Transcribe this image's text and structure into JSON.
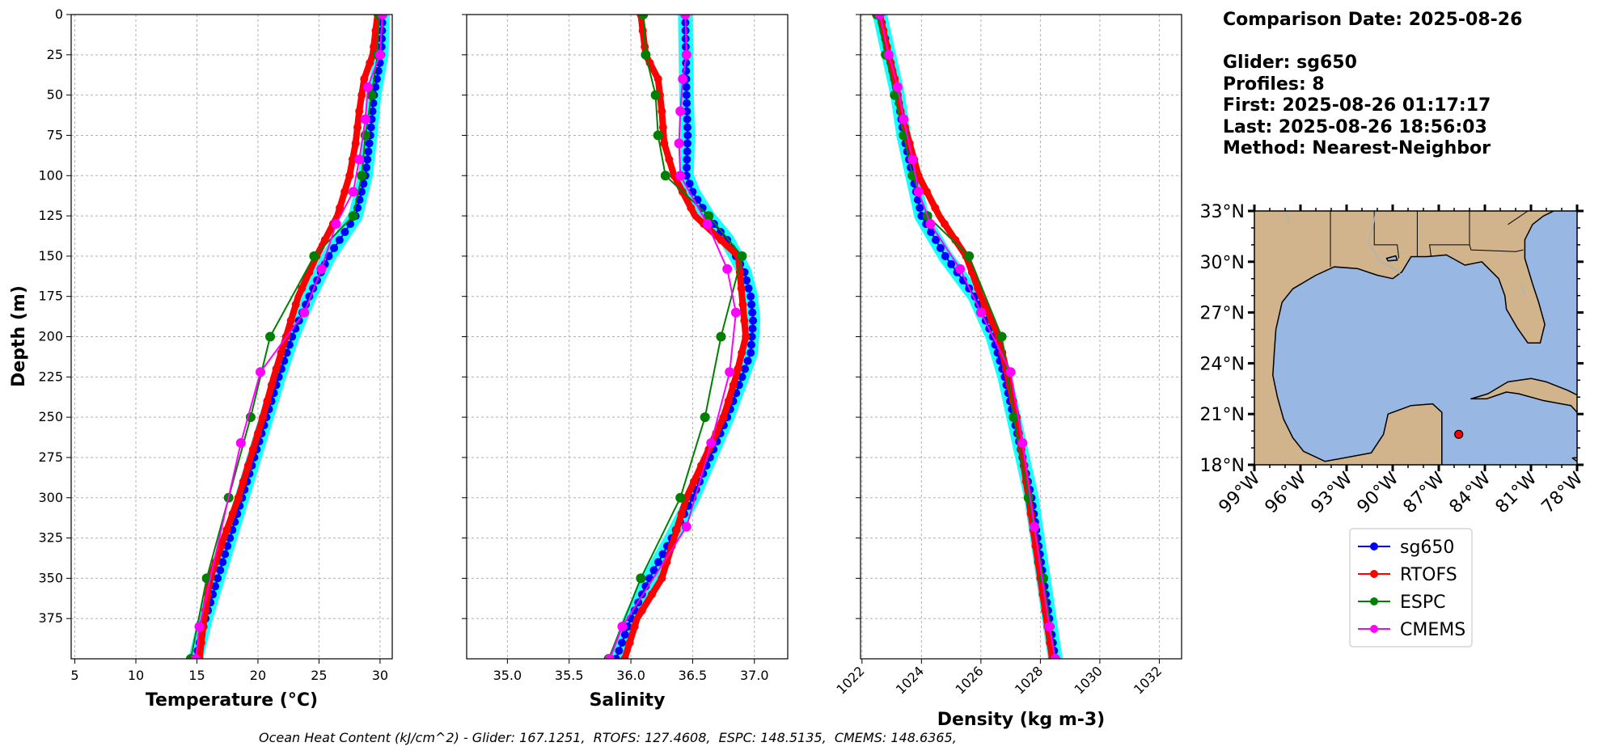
{
  "info": {
    "comparison": "Comparison Date: 2025-08-26",
    "glider": "Glider: sg650",
    "profiles": "Profiles: 8",
    "first": "First: 2025-08-26 01:17:17",
    "last": "Last: 2025-08-26 18:56:03",
    "method": "Method: Nearest-Neighbor"
  },
  "footer": "Ocean Heat Content (kJ/cm^2) - Glider: 167.1251,  RTOFS: 127.4608,  ESPC: 148.5135,  CMEMS: 148.6365,",
  "colors": {
    "sg650": "#0000ff",
    "sg650_spread": "#00ffff",
    "RTOFS": "#ff0000",
    "ESPC": "#008000",
    "CMEMS": "#ff00ff",
    "land": "#d2b48c",
    "ocean": "#98b7e2"
  },
  "chart_data": [
    {
      "type": "line",
      "xlabel": "Temperature (°C)",
      "ylabel": "Depth (m)",
      "xlim": [
        4.7,
        31
      ],
      "ylim": [
        400,
        0
      ],
      "xticks": [
        5,
        10,
        15,
        20,
        25,
        30
      ],
      "yticks": [
        0,
        25,
        50,
        75,
        100,
        125,
        150,
        175,
        200,
        225,
        250,
        275,
        300,
        325,
        350,
        375
      ],
      "grid": true,
      "series": [
        {
          "name": "sg650",
          "depth": [
            0,
            25,
            50,
            75,
            100,
            125,
            150,
            175,
            200,
            225,
            250,
            275,
            300,
            325,
            350,
            375,
            400
          ],
          "values": [
            30.2,
            30.1,
            29.5,
            29.2,
            28.8,
            28.0,
            25.8,
            24.2,
            22.8,
            21.7,
            20.7,
            19.7,
            18.7,
            17.7,
            16.7,
            15.7,
            14.9
          ]
        },
        {
          "name": "RTOFS",
          "depth": [
            0,
            25,
            40,
            60,
            80,
            100,
            125,
            150,
            175,
            200,
            225,
            250,
            275,
            300,
            325,
            350,
            375,
            400
          ],
          "values": [
            29.8,
            29.4,
            28.7,
            28.3,
            28.0,
            27.5,
            26.5,
            24.8,
            23.3,
            22.3,
            21.3,
            20.4,
            19.4,
            18.4,
            17.2,
            16.1,
            15.6,
            15.2
          ]
        },
        {
          "name": "ESPC",
          "depth": [
            0,
            25,
            50,
            75,
            100,
            125,
            150,
            200,
            250,
            300,
            350,
            400
          ],
          "values": [
            29.9,
            29.8,
            29.3,
            28.8,
            28.5,
            27.8,
            24.6,
            21.0,
            19.4,
            17.6,
            15.8,
            14.5
          ]
        },
        {
          "name": "CMEMS",
          "depth": [
            0,
            25,
            45,
            65,
            90,
            110,
            130,
            158,
            185,
            222,
            266,
            380,
            400
          ],
          "values": [
            30.2,
            30.0,
            29.0,
            28.8,
            28.3,
            27.8,
            26.4,
            25.2,
            23.8,
            20.2,
            18.6,
            15.2,
            14.9
          ]
        }
      ]
    },
    {
      "type": "line",
      "xlabel": "Salinity",
      "xlim": [
        34.67,
        37.27
      ],
      "ylim": [
        400,
        0
      ],
      "xticks": [
        35.0,
        35.5,
        36.0,
        36.5,
        37.0
      ],
      "grid": true,
      "series": [
        {
          "name": "sg650",
          "depth": [
            0,
            50,
            75,
            100,
            110,
            125,
            140,
            160,
            175,
            190,
            210,
            225,
            250,
            275,
            300,
            325,
            350,
            375,
            400
          ],
          "values": [
            36.44,
            36.45,
            36.46,
            36.45,
            36.5,
            36.62,
            36.78,
            36.92,
            36.97,
            36.99,
            36.97,
            36.9,
            36.78,
            36.64,
            36.5,
            36.33,
            36.15,
            36.0,
            35.88
          ]
        },
        {
          "name": "RTOFS",
          "depth": [
            0,
            25,
            40,
            60,
            80,
            100,
            125,
            150,
            200,
            225,
            250,
            275,
            300,
            325,
            350,
            375,
            400
          ],
          "values": [
            36.08,
            36.12,
            36.22,
            36.25,
            36.27,
            36.35,
            36.52,
            36.87,
            36.93,
            36.85,
            36.75,
            36.6,
            36.45,
            36.35,
            36.25,
            36.05,
            35.95
          ]
        },
        {
          "name": "ESPC",
          "depth": [
            0,
            25,
            50,
            75,
            100,
            125,
            150,
            200,
            250,
            300,
            350,
            400
          ],
          "values": [
            36.1,
            36.12,
            36.2,
            36.22,
            36.28,
            36.63,
            36.9,
            36.73,
            36.6,
            36.4,
            36.08,
            35.82
          ]
        },
        {
          "name": "CMEMS",
          "depth": [
            0,
            25,
            40,
            60,
            80,
            100,
            130,
            158,
            185,
            222,
            266,
            318,
            380,
            400
          ],
          "values": [
            36.44,
            36.45,
            36.42,
            36.4,
            36.39,
            36.4,
            36.62,
            36.78,
            36.85,
            36.8,
            36.65,
            36.45,
            35.93,
            35.83
          ]
        }
      ]
    },
    {
      "type": "line",
      "xlabel": "Density (kg m-3)",
      "xlim": [
        1021.95,
        1032.75
      ],
      "ylim": [
        400,
        0
      ],
      "xticks": [
        1022,
        1024,
        1026,
        1028,
        1030,
        1032
      ],
      "grid": true,
      "series": [
        {
          "name": "sg650",
          "depth": [
            0,
            25,
            50,
            75,
            100,
            125,
            150,
            175,
            200,
            225,
            250,
            275,
            300,
            325,
            350,
            375,
            400
          ],
          "values": [
            1022.6,
            1022.9,
            1023.2,
            1023.4,
            1023.7,
            1024.0,
            1024.8,
            1025.8,
            1026.4,
            1026.8,
            1027.1,
            1027.4,
            1027.7,
            1027.9,
            1028.1,
            1028.3,
            1028.5
          ]
        },
        {
          "name": "RTOFS",
          "depth": [
            0,
            25,
            40,
            60,
            80,
            100,
            125,
            150,
            175,
            200,
            225,
            250,
            275,
            300,
            325,
            350,
            375,
            400
          ],
          "values": [
            1022.6,
            1022.9,
            1023.1,
            1023.3,
            1023.6,
            1023.9,
            1024.6,
            1025.5,
            1026.0,
            1026.6,
            1026.9,
            1027.2,
            1027.4,
            1027.6,
            1027.8,
            1028.0,
            1028.2,
            1028.4
          ]
        },
        {
          "name": "ESPC",
          "depth": [
            0,
            25,
            50,
            75,
            100,
            125,
            150,
            200,
            250,
            300,
            350,
            400
          ],
          "values": [
            1022.5,
            1022.8,
            1023.1,
            1023.4,
            1023.7,
            1024.2,
            1025.6,
            1026.7,
            1027.1,
            1027.6,
            1028.1,
            1028.5
          ]
        },
        {
          "name": "CMEMS",
          "depth": [
            0,
            25,
            45,
            65,
            90,
            110,
            130,
            158,
            185,
            222,
            266,
            318,
            380,
            400
          ],
          "values": [
            1022.6,
            1022.9,
            1023.2,
            1023.4,
            1023.7,
            1023.9,
            1024.3,
            1025.3,
            1026.0,
            1027.0,
            1027.4,
            1027.8,
            1028.3,
            1028.5
          ]
        }
      ]
    },
    {
      "type": "map",
      "lon_range": [
        -99,
        -78
      ],
      "lat_range": [
        18,
        33
      ],
      "xticks": [
        -99,
        -96,
        -93,
        -90,
        -87,
        -84,
        -81,
        -78
      ],
      "xtick_labels": [
        "99°W",
        "96°W",
        "93°W",
        "90°W",
        "87°W",
        "84°W",
        "81°W",
        "78°W"
      ],
      "yticks": [
        18,
        21,
        24,
        27,
        30,
        33
      ],
      "ytick_labels": [
        "18°N",
        "21°N",
        "24°N",
        "27°N",
        "30°N",
        "33°N"
      ],
      "marker": {
        "lon": -85.7,
        "lat": 19.8
      }
    }
  ],
  "legend": {
    "placement": "below-map",
    "entries": [
      "sg650",
      "RTOFS",
      "ESPC",
      "CMEMS"
    ]
  }
}
